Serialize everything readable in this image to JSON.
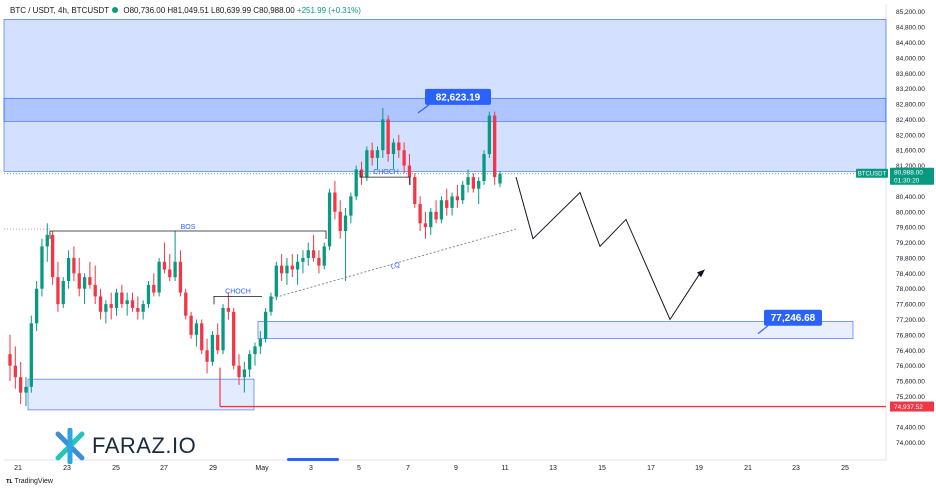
{
  "header": {
    "symbol": "BTC / USDT, 4h, BTCUSDT",
    "open": "O80,736.00",
    "high": "H81,049.51",
    "low": "L80,639.99",
    "close": "C80,988.00",
    "change": "+251.99 (+0.31%)"
  },
  "branding": {
    "logo_text": "FARAZ.IO",
    "footer": "TradingView"
  },
  "colors": {
    "up": "#089981",
    "down": "#f23645",
    "zone": "#cfdcff",
    "accent": "#2962ff",
    "red_line": "#f23645"
  },
  "chart_data": {
    "type": "candlestick",
    "title": "BTC / USDT, 4h, BTCUSDT",
    "ylim": [
      73600,
      85400
    ],
    "y_ticks": [
      "74,000.00",
      "74,400.00",
      "75,200.00",
      "75,600.00",
      "76,000.00",
      "76,400.00",
      "76,800.00",
      "77,200.00",
      "77,600.00",
      "78,000.00",
      "78,400.00",
      "78,800.00",
      "79,200.00",
      "79,600.00",
      "80,000.00",
      "80,400.00",
      "81,200.00",
      "81,600.00",
      "82,000.00",
      "82,400.00",
      "82,800.00",
      "83,200.00",
      "83,600.00",
      "84,000.00",
      "84,400.00",
      "84,800.00",
      "85,200.00"
    ],
    "x_ticks": [
      "21",
      "23",
      "25",
      "27",
      "29",
      "May",
      "3",
      "5",
      "7",
      "9",
      "11",
      "13",
      "15",
      "17",
      "19",
      "21",
      "23",
      "25"
    ],
    "candles": [
      [
        76300,
        76800,
        75600,
        76000
      ],
      [
        76000,
        76500,
        75400,
        75700
      ],
      [
        75700,
        76100,
        75000,
        75300
      ],
      [
        75300,
        75700,
        74950,
        75450
      ],
      [
        75450,
        77300,
        75300,
        77100
      ],
      [
        77100,
        78200,
        76900,
        78000
      ],
      [
        78000,
        79300,
        77800,
        79100
      ],
      [
        79100,
        79700,
        78700,
        79400
      ],
      [
        79400,
        79500,
        78100,
        78300
      ],
      [
        78300,
        78700,
        77400,
        77600
      ],
      [
        77600,
        78300,
        77500,
        78200
      ],
      [
        78200,
        79000,
        78000,
        78800
      ],
      [
        78800,
        79100,
        78200,
        78400
      ],
      [
        78400,
        78800,
        77800,
        78000
      ],
      [
        78000,
        78400,
        77600,
        78300
      ],
      [
        78300,
        78700,
        78000,
        78100
      ],
      [
        78100,
        78600,
        77600,
        77800
      ],
      [
        77800,
        78000,
        77200,
        77400
      ],
      [
        77400,
        77700,
        77100,
        77600
      ],
      [
        77600,
        77900,
        77200,
        77500
      ],
      [
        77500,
        78000,
        77300,
        77900
      ],
      [
        77900,
        78100,
        77500,
        77600
      ],
      [
        77600,
        77900,
        77300,
        77700
      ],
      [
        77700,
        77900,
        77400,
        77500
      ],
      [
        77500,
        77800,
        77200,
        77400
      ],
      [
        77400,
        77700,
        77200,
        77600
      ],
      [
        77600,
        78200,
        77500,
        78100
      ],
      [
        78100,
        78400,
        77800,
        77900
      ],
      [
        77900,
        78800,
        77800,
        78700
      ],
      [
        78700,
        79200,
        78400,
        78500
      ],
      [
        78500,
        78900,
        78200,
        78300
      ],
      [
        78300,
        79500,
        78200,
        78700
      ],
      [
        78700,
        79000,
        77800,
        77900
      ],
      [
        77900,
        78000,
        77200,
        77300
      ],
      [
        77300,
        77400,
        76700,
        76800
      ],
      [
        76800,
        77200,
        76500,
        77100
      ],
      [
        77100,
        77200,
        76300,
        76400
      ],
      [
        76400,
        76700,
        75800,
        76100
      ],
      [
        76100,
        76900,
        76000,
        76800
      ],
      [
        76800,
        77100,
        76300,
        76400
      ],
      [
        76400,
        77600,
        76300,
        77500
      ],
      [
        77500,
        77900,
        77200,
        77400
      ],
      [
        77400,
        77500,
        75900,
        76000
      ],
      [
        76000,
        76300,
        75500,
        75700
      ],
      [
        75700,
        76100,
        75300,
        75900
      ],
      [
        75900,
        76400,
        75700,
        76300
      ],
      [
        76300,
        76600,
        76000,
        76500
      ],
      [
        76500,
        76900,
        76300,
        76700
      ],
      [
        76700,
        77500,
        76600,
        77400
      ],
      [
        77400,
        77900,
        77300,
        77800
      ],
      [
        77800,
        78700,
        77700,
        78600
      ],
      [
        78600,
        78900,
        78200,
        78400
      ],
      [
        78400,
        78800,
        78100,
        78600
      ],
      [
        78600,
        78900,
        78300,
        78500
      ],
      [
        78500,
        78900,
        78100,
        78700
      ],
      [
        78700,
        79000,
        78400,
        78800
      ],
      [
        78800,
        79200,
        78600,
        79000
      ],
      [
        79000,
        79400,
        78700,
        78800
      ],
      [
        78800,
        79000,
        78400,
        78600
      ],
      [
        78600,
        79200,
        78500,
        79100
      ],
      [
        79100,
        80600,
        79000,
        80500
      ],
      [
        80500,
        80800,
        79800,
        80000
      ],
      [
        80000,
        80300,
        79300,
        79500
      ],
      [
        79500,
        80100,
        78200,
        79900
      ],
      [
        79900,
        80500,
        79700,
        80400
      ],
      [
        80400,
        81200,
        80300,
        81100
      ],
      [
        81100,
        81300,
        80700,
        80900
      ],
      [
        80900,
        81700,
        80800,
        81600
      ],
      [
        81600,
        81800,
        81200,
        81400
      ],
      [
        81400,
        81700,
        81100,
        81600
      ],
      [
        81600,
        82700,
        81400,
        82400
      ],
      [
        82400,
        82500,
        81300,
        81500
      ],
      [
        81500,
        81900,
        81100,
        81800
      ],
      [
        81800,
        82000,
        81400,
        81600
      ],
      [
        81600,
        81800,
        81000,
        81200
      ],
      [
        81200,
        81500,
        80700,
        80900
      ],
      [
        80900,
        81000,
        80100,
        80200
      ],
      [
        80200,
        80400,
        79500,
        79700
      ],
      [
        79700,
        80000,
        79300,
        79600
      ],
      [
        79600,
        80100,
        79400,
        80000
      ],
      [
        80000,
        80300,
        79700,
        79800
      ],
      [
        79800,
        80400,
        79700,
        80300
      ],
      [
        80300,
        80600,
        79900,
        80100
      ],
      [
        80100,
        80500,
        79900,
        80400
      ],
      [
        80400,
        80700,
        80100,
        80300
      ],
      [
        80300,
        80800,
        80200,
        80700
      ],
      [
        80700,
        81100,
        80500,
        80900
      ],
      [
        80900,
        81000,
        80500,
        80600
      ],
      [
        80600,
        80900,
        80200,
        80800
      ],
      [
        80800,
        81600,
        80700,
        81500
      ],
      [
        81500,
        82600,
        81400,
        82500
      ],
      [
        82500,
        82600,
        80700,
        80900
      ],
      [
        80736,
        81049.51,
        80639.99,
        80988
      ]
    ],
    "zones": [
      {
        "type": "supply",
        "low": 81050,
        "high": 85000
      },
      {
        "type": "supply",
        "low": 82350,
        "high": 82950
      },
      {
        "type": "demand",
        "low": 74850,
        "high": 75650
      },
      {
        "type": "demand",
        "low": 76700,
        "high": 77150
      }
    ],
    "annotations": [
      {
        "text": "BOS",
        "level": 79500
      },
      {
        "text": "CHOCH",
        "level": 77800
      },
      {
        "text": "CHOCH",
        "level": 80900
      },
      {
        "text": "LQ",
        "level": 78400
      }
    ],
    "callouts": [
      {
        "text": "82,623.19",
        "value": 82623.19
      },
      {
        "text": "77,246.68",
        "value": 77246.68
      }
    ],
    "last_price": {
      "ticker": "BTCUSDT",
      "price": "80,988.00",
      "countdown": "01:30:20",
      "value": 80988
    },
    "red_level": {
      "text": "74,937.52",
      "value": 74937.52
    },
    "projection": [
      80900,
      79300,
      80500,
      79100,
      79800,
      77200,
      78400
    ]
  }
}
